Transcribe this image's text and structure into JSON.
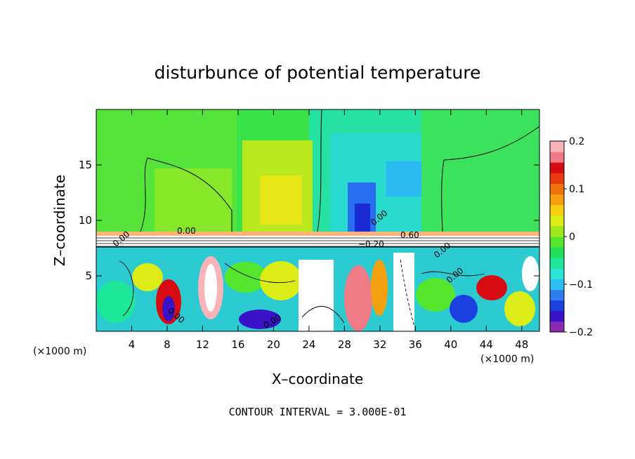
{
  "chart_data": {
    "type": "heatmap",
    "title": "disturbunce of potential temperature",
    "xlabel": "X–coordinate",
    "ylabel": "Z–coordinate",
    "x_unit": "(×1000 m)",
    "x_unit_right": "(×1000 m)",
    "xlim": [
      0,
      50
    ],
    "ylim": [
      0,
      20
    ],
    "x_ticks": [
      4,
      8,
      12,
      16,
      20,
      24,
      28,
      32,
      36,
      40,
      44,
      48
    ],
    "x_tick_labels": [
      "4",
      "8",
      "12",
      "16",
      "20",
      "24",
      "28",
      "32",
      "36",
      "40",
      "44",
      "48"
    ],
    "y_ticks": [
      5,
      10,
      15
    ],
    "y_tick_labels": [
      "5",
      "10",
      "15"
    ],
    "colorbar": {
      "range": [
        -0.2,
        0.2
      ],
      "ticks": [
        0.2,
        0.1,
        0,
        -0.1,
        -0.2
      ],
      "tick_labels": [
        "0.2",
        "0.1",
        "0",
        "−0.1",
        "−0.2"
      ],
      "colors": [
        "#8b2bb5",
        "#3b12c8",
        "#1c40e0",
        "#2f7ef0",
        "#2fbef2",
        "#29e6d6",
        "#1de89a",
        "#22e05a",
        "#54e62c",
        "#9ee81e",
        "#dcec16",
        "#f5d010",
        "#f5a00e",
        "#f0700e",
        "#e83a10",
        "#d80a12",
        "#f07a86",
        "#f8b4b8"
      ]
    },
    "contour_labels": [
      "0.00",
      "0.60",
      "0.00",
      "0.00",
      "0.00",
      "0.00",
      "−0.20",
      "0.00",
      "0.00"
    ],
    "footer": "CONTOUR INTERVAL = 3.000E-01"
  }
}
